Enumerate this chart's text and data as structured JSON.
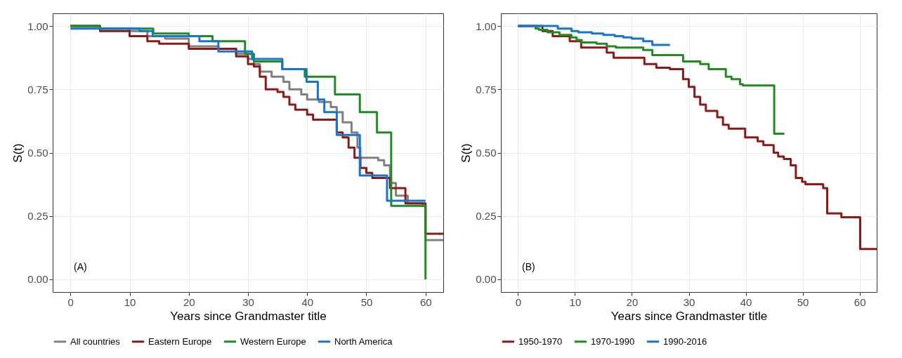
{
  "chart_data": [
    {
      "type": "step",
      "xlabel": "Years since Grandmaster title",
      "ylabel": "S(t)",
      "annotations": [
        "(A)"
      ],
      "xlim": [
        -3,
        63
      ],
      "ylim": [
        -0.05,
        1.05
      ],
      "xticks": [
        0,
        10,
        20,
        30,
        40,
        50,
        60
      ],
      "yticks": [
        {
          "value": 0,
          "label": "0.00"
        },
        {
          "value": 0.25,
          "label": "0.25"
        },
        {
          "value": 0.5,
          "label": "0.50"
        },
        {
          "value": 0.75,
          "label": "0.75"
        },
        {
          "value": 1,
          "label": "1.00"
        }
      ],
      "grid": true,
      "legend": "bottom",
      "series": [
        {
          "name": "All countries",
          "color": "#808080",
          "x": [
            0,
            5,
            10,
            13,
            16,
            20,
            25,
            28,
            30,
            31,
            32,
            34,
            36,
            37,
            39,
            40,
            42,
            44,
            45,
            46,
            47.5,
            48.5,
            49,
            52,
            53,
            54,
            55,
            57,
            59.5,
            60,
            63
          ],
          "values": [
            1,
            0.99,
            0.98,
            0.96,
            0.95,
            0.92,
            0.91,
            0.89,
            0.87,
            0.85,
            0.82,
            0.8,
            0.78,
            0.75,
            0.73,
            0.71,
            0.7,
            0.68,
            0.66,
            0.62,
            0.58,
            0.52,
            0.48,
            0.47,
            0.45,
            0.38,
            0.33,
            0.3,
            0.29,
            0.155,
            0.155
          ]
        },
        {
          "name": "Eastern Europe",
          "color": "#8b1a1a",
          "x": [
            0,
            5,
            10,
            13,
            15,
            20,
            25,
            28,
            30,
            31,
            32,
            33,
            35,
            36,
            37,
            38,
            40,
            41,
            45,
            46,
            47,
            48,
            49,
            50,
            51,
            54,
            56.6,
            60,
            63
          ],
          "values": [
            1,
            0.98,
            0.96,
            0.94,
            0.93,
            0.91,
            0.91,
            0.88,
            0.85,
            0.84,
            0.8,
            0.75,
            0.74,
            0.72,
            0.69,
            0.67,
            0.65,
            0.63,
            0.58,
            0.56,
            0.52,
            0.48,
            0.44,
            0.42,
            0.4,
            0.36,
            0.3,
            0.18,
            0.18
          ]
        },
        {
          "name": "Western Europe",
          "color": "#228b22",
          "x": [
            0,
            5,
            14,
            20,
            24,
            29.5,
            31,
            35.8,
            39.6,
            44.7,
            48.9,
            51.8,
            54.2,
            60
          ],
          "values": [
            1,
            0.99,
            0.97,
            0.96,
            0.94,
            0.89,
            0.86,
            0.83,
            0.8,
            0.73,
            0.66,
            0.58,
            0.29,
            0
          ]
        },
        {
          "name": "North America",
          "color": "#1874cd",
          "x": [
            0,
            11.7,
            13.9,
            21.8,
            25,
            30.7,
            35.8,
            39.9,
            41.8,
            42.9,
            45,
            48.9,
            53.5,
            60
          ],
          "values": [
            0.99,
            0.98,
            0.96,
            0.94,
            0.9,
            0.87,
            0.83,
            0.78,
            0.71,
            0.66,
            0.57,
            0.41,
            0.31,
            0.31
          ]
        }
      ]
    },
    {
      "type": "step",
      "xlabel": "Years since Grandmaster title",
      "ylabel": "S(t)",
      "annotations": [
        "(B)"
      ],
      "xlim": [
        -3,
        63
      ],
      "ylim": [
        -0.05,
        1.05
      ],
      "xticks": [
        0,
        10,
        20,
        30,
        40,
        50,
        60
      ],
      "yticks": [
        {
          "value": 0,
          "label": "0.00"
        },
        {
          "value": 0.25,
          "label": "0.25"
        },
        {
          "value": 0.5,
          "label": "0.50"
        },
        {
          "value": 0.75,
          "label": "0.75"
        },
        {
          "value": 1,
          "label": "1.00"
        }
      ],
      "grid": true,
      "legend": "bottom",
      "series": [
        {
          "name": "1950-1970",
          "color": "#8b1a1a",
          "x": [
            0,
            4.3,
            6.1,
            9.1,
            11.1,
            15.6,
            16.8,
            22.2,
            24.3,
            26.7,
            29,
            30,
            31,
            32,
            33,
            35,
            36,
            37,
            39.9,
            42.1,
            43.1,
            44.9,
            45.7,
            46.7,
            47.9,
            48.8,
            49.9,
            50.5,
            53.6,
            54.3,
            56.8,
            60.1,
            63
          ],
          "values": [
            1,
            0.98,
            0.96,
            0.94,
            0.915,
            0.895,
            0.875,
            0.85,
            0.835,
            0.83,
            0.79,
            0.76,
            0.72,
            0.69,
            0.665,
            0.64,
            0.61,
            0.595,
            0.56,
            0.545,
            0.53,
            0.5,
            0.485,
            0.475,
            0.45,
            0.4,
            0.385,
            0.375,
            0.36,
            0.26,
            0.245,
            0.12,
            0.12
          ]
        },
        {
          "name": "1970-1990",
          "color": "#228b22",
          "x": [
            0,
            3.1,
            3.7,
            5.2,
            7.3,
            9.4,
            10.3,
            11.2,
            13.8,
            15.6,
            17.2,
            22,
            23.6,
            29,
            32,
            33.5,
            36.5,
            37.5,
            39,
            39.5,
            45,
            46.8
          ],
          "values": [
            1,
            0.99,
            0.985,
            0.975,
            0.965,
            0.955,
            0.945,
            0.935,
            0.93,
            0.92,
            0.915,
            0.905,
            0.885,
            0.86,
            0.85,
            0.83,
            0.8,
            0.79,
            0.77,
            0.765,
            0.575,
            0.575
          ]
        },
        {
          "name": "1990-2016",
          "color": "#1874cd",
          "x": [
            0,
            7,
            9.4,
            10.6,
            13,
            15,
            17,
            18.5,
            20,
            22,
            23.6,
            26.7
          ],
          "values": [
            1,
            0.99,
            0.98,
            0.975,
            0.97,
            0.965,
            0.96,
            0.955,
            0.95,
            0.94,
            0.925,
            0.925
          ]
        }
      ]
    }
  ]
}
